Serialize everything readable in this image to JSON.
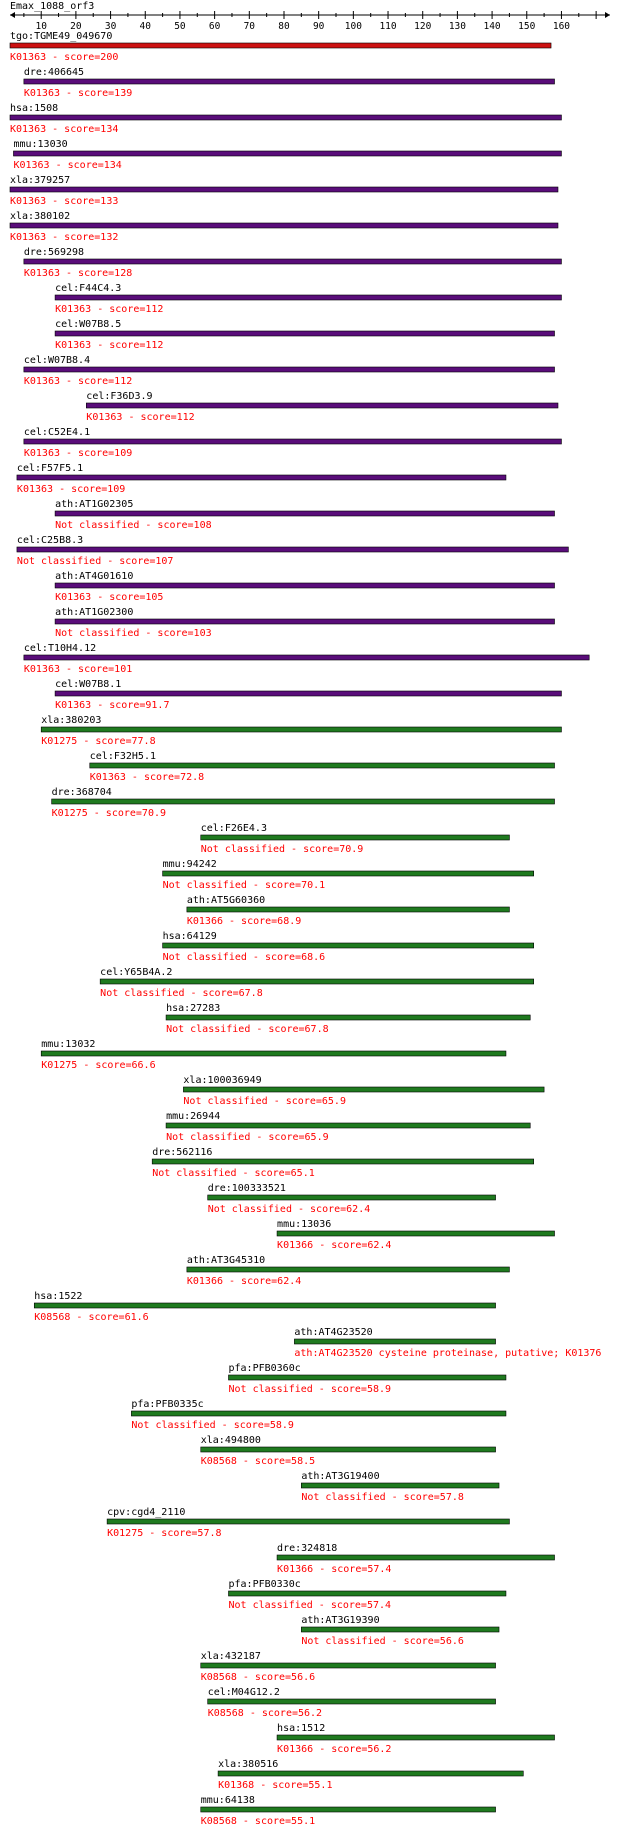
{
  "title": "Emax_1088_orf3",
  "colors": {
    "axis": "#000000",
    "description": "#ff0000",
    "bar_red": "#cc1111",
    "bar_purple": "#5a0d7a",
    "bar_green": "#1f7a1f",
    "bar_border": "#000000"
  },
  "axis": {
    "min": 1,
    "max": 174,
    "ticks": [
      10,
      20,
      30,
      40,
      50,
      60,
      70,
      80,
      90,
      100,
      110,
      120,
      130,
      140,
      150,
      160
    ]
  },
  "hits": [
    {
      "name": "tgo:TGME49_049670",
      "desc": "K01363 - score=200",
      "start": 1,
      "end": 157,
      "color": "red"
    },
    {
      "name": "dre:406645",
      "desc": "K01363 - score=139",
      "start": 5,
      "end": 158,
      "color": "purple"
    },
    {
      "name": "hsa:1508",
      "desc": "K01363 - score=134",
      "start": 1,
      "end": 160,
      "color": "purple"
    },
    {
      "name": "mmu:13030",
      "desc": "K01363 - score=134",
      "start": 2,
      "end": 160,
      "color": "purple"
    },
    {
      "name": "xla:379257",
      "desc": "K01363 - score=133",
      "start": 1,
      "end": 159,
      "color": "purple"
    },
    {
      "name": "xla:380102",
      "desc": "K01363 - score=132",
      "start": 1,
      "end": 159,
      "color": "purple"
    },
    {
      "name": "dre:569298",
      "desc": "K01363 - score=128",
      "start": 5,
      "end": 160,
      "color": "purple"
    },
    {
      "name": "cel:F44C4.3",
      "desc": "K01363 - score=112",
      "start": 14,
      "end": 160,
      "color": "purple"
    },
    {
      "name": "cel:W07B8.5",
      "desc": "K01363 - score=112",
      "start": 14,
      "end": 158,
      "color": "purple"
    },
    {
      "name": "cel:W07B8.4",
      "desc": "K01363 - score=112",
      "start": 5,
      "end": 158,
      "color": "purple"
    },
    {
      "name": "cel:F36D3.9",
      "desc": "K01363 - score=112",
      "start": 23,
      "end": 159,
      "color": "purple"
    },
    {
      "name": "cel:C52E4.1",
      "desc": "K01363 - score=109",
      "start": 5,
      "end": 160,
      "color": "purple"
    },
    {
      "name": "cel:F57F5.1",
      "desc": "K01363 - score=109",
      "start": 3,
      "end": 144,
      "color": "purple"
    },
    {
      "name": "ath:AT1G02305",
      "desc": "Not classified - score=108",
      "start": 14,
      "end": 158,
      "color": "purple"
    },
    {
      "name": "cel:C25B8.3",
      "desc": "Not classified - score=107",
      "start": 3,
      "end": 162,
      "color": "purple"
    },
    {
      "name": "ath:AT4G01610",
      "desc": "K01363 - score=105",
      "start": 14,
      "end": 158,
      "color": "purple"
    },
    {
      "name": "ath:AT1G02300",
      "desc": "Not classified - score=103",
      "start": 14,
      "end": 158,
      "color": "purple"
    },
    {
      "name": "cel:T10H4.12",
      "desc": "K01363 - score=101",
      "start": 5,
      "end": 168,
      "color": "purple"
    },
    {
      "name": "cel:W07B8.1",
      "desc": "K01363 - score=91.7",
      "start": 14,
      "end": 160,
      "color": "purple"
    },
    {
      "name": "xla:380203",
      "desc": "K01275 - score=77.8",
      "start": 10,
      "end": 160,
      "color": "green"
    },
    {
      "name": "cel:F32H5.1",
      "desc": "K01363 - score=72.8",
      "start": 24,
      "end": 158,
      "color": "green"
    },
    {
      "name": "dre:368704",
      "desc": "K01275 - score=70.9",
      "start": 13,
      "end": 158,
      "color": "green"
    },
    {
      "name": "cel:F26E4.3",
      "desc": "Not classified - score=70.9",
      "start": 56,
      "end": 145,
      "color": "green"
    },
    {
      "name": "mmu:94242",
      "desc": "Not classified - score=70.1",
      "start": 45,
      "end": 152,
      "color": "green"
    },
    {
      "name": "ath:AT5G60360",
      "desc": "K01366 - score=68.9",
      "start": 52,
      "end": 145,
      "color": "green"
    },
    {
      "name": "hsa:64129",
      "desc": "Not classified - score=68.6",
      "start": 45,
      "end": 152,
      "color": "green"
    },
    {
      "name": "cel:Y65B4A.2",
      "desc": "Not classified - score=67.8",
      "start": 27,
      "end": 152,
      "color": "green"
    },
    {
      "name": "hsa:27283",
      "desc": "Not classified - score=67.8",
      "start": 46,
      "end": 151,
      "color": "green"
    },
    {
      "name": "mmu:13032",
      "desc": "K01275 - score=66.6",
      "start": 10,
      "end": 144,
      "color": "green"
    },
    {
      "name": "xla:100036949",
      "desc": "Not classified - score=65.9",
      "start": 51,
      "end": 155,
      "color": "green"
    },
    {
      "name": "mmu:26944",
      "desc": "Not classified - score=65.9",
      "start": 46,
      "end": 151,
      "color": "green"
    },
    {
      "name": "dre:562116",
      "desc": "Not classified - score=65.1",
      "start": 42,
      "end": 152,
      "color": "green"
    },
    {
      "name": "dre:100333521",
      "desc": "Not classified - score=62.4",
      "start": 58,
      "end": 141,
      "color": "green"
    },
    {
      "name": "mmu:13036",
      "desc": "K01366 - score=62.4",
      "start": 78,
      "end": 158,
      "color": "green"
    },
    {
      "name": "ath:AT3G45310",
      "desc": "K01366 - score=62.4",
      "start": 52,
      "end": 145,
      "color": "green"
    },
    {
      "name": "hsa:1522",
      "desc": "K08568 - score=61.6",
      "start": 8,
      "end": 141,
      "color": "green"
    },
    {
      "name": "ath:AT4G23520",
      "desc": "ath:AT4G23520  cysteine proteinase, putative; K01376",
      "start": 83,
      "end": 141,
      "color": "green"
    },
    {
      "name": "pfa:PFB0360c",
      "desc": "Not classified - score=58.9",
      "start": 64,
      "end": 144,
      "color": "green"
    },
    {
      "name": "pfa:PFB0335c",
      "desc": "Not classified - score=58.9",
      "start": 36,
      "end": 144,
      "color": "green"
    },
    {
      "name": "xla:494800",
      "desc": "K08568 - score=58.5",
      "start": 56,
      "end": 141,
      "color": "green"
    },
    {
      "name": "ath:AT3G19400",
      "desc": "Not classified - score=57.8",
      "start": 85,
      "end": 142,
      "color": "green"
    },
    {
      "name": "cpv:cgd4_2110",
      "desc": "K01275 - score=57.8",
      "start": 29,
      "end": 145,
      "color": "green"
    },
    {
      "name": "dre:324818",
      "desc": "K01366 - score=57.4",
      "start": 78,
      "end": 158,
      "color": "green"
    },
    {
      "name": "pfa:PFB0330c",
      "desc": "Not classified - score=57.4",
      "start": 64,
      "end": 144,
      "color": "green"
    },
    {
      "name": "ath:AT3G19390",
      "desc": "Not classified - score=56.6",
      "start": 85,
      "end": 142,
      "color": "green"
    },
    {
      "name": "xla:432187",
      "desc": "K08568 - score=56.6",
      "start": 56,
      "end": 141,
      "color": "green"
    },
    {
      "name": "cel:M04G12.2",
      "desc": "K08568 - score=56.2",
      "start": 58,
      "end": 141,
      "color": "green"
    },
    {
      "name": "hsa:1512",
      "desc": "K01366 - score=56.2",
      "start": 78,
      "end": 158,
      "color": "green"
    },
    {
      "name": "xla:380516",
      "desc": "K01368 - score=55.1",
      "start": 61,
      "end": 149,
      "color": "green"
    },
    {
      "name": "mmu:64138",
      "desc": "K08568 - score=55.1",
      "start": 56,
      "end": 141,
      "color": "green"
    }
  ]
}
